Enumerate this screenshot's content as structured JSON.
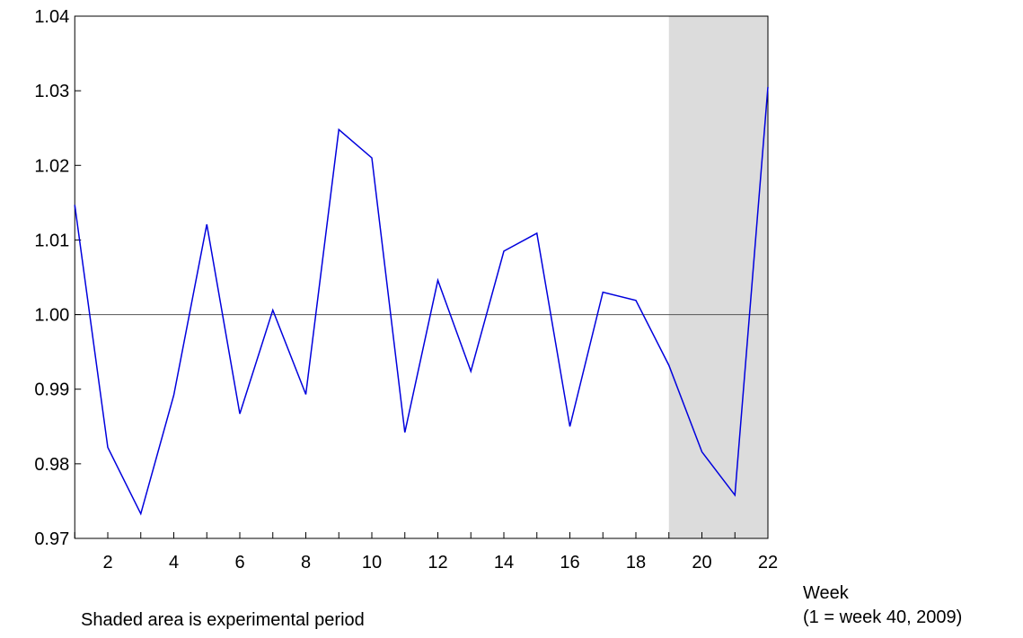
{
  "chart_data": {
    "type": "line",
    "x_label": "Week",
    "x_note": "(1 = week 40, 2009)",
    "caption": "Shaded area is experimental period",
    "x": [
      1,
      2,
      3,
      4,
      5,
      6,
      7,
      8,
      9,
      10,
      11,
      12,
      13,
      14,
      15,
      16,
      17,
      18,
      19,
      20,
      21,
      22
    ],
    "series": [
      {
        "color": "#0000dd",
        "values": [
          1.0147,
          0.9822,
          0.9733,
          0.9892,
          1.0121,
          0.9867,
          1.0006,
          0.9893,
          1.0248,
          1.021,
          0.9842,
          1.0046,
          0.9924,
          1.0085,
          1.0109,
          0.985,
          1.003,
          1.0019,
          0.9932,
          0.9816,
          0.9758,
          1.0305
        ]
      }
    ],
    "xlim": [
      1,
      22
    ],
    "xticks": [
      2,
      4,
      6,
      8,
      10,
      12,
      14,
      16,
      18,
      20,
      22
    ],
    "ylim": [
      0.97,
      1.04
    ],
    "yticks": [
      0.97,
      0.98,
      0.99,
      {
        "value": 1.0,
        "label": "1.00"
      },
      1.01,
      1.02,
      1.03,
      1.04
    ],
    "reference_line": 1.0,
    "shaded": {
      "from": 19,
      "to": 22,
      "color": "#dcdcdc"
    }
  }
}
